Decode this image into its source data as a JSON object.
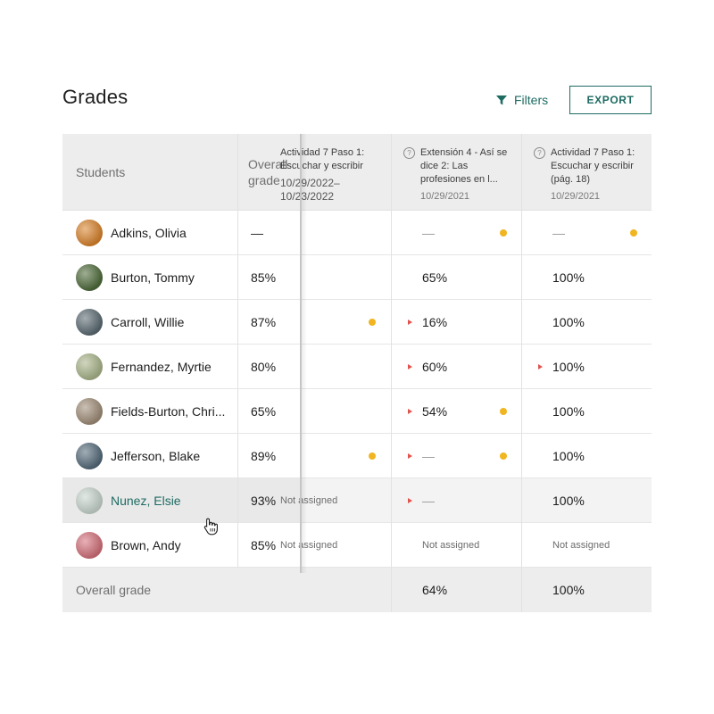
{
  "page": {
    "title": "Grades"
  },
  "toolbar": {
    "filters_label": "Filters",
    "export_label": "EXPORT"
  },
  "table": {
    "headers": {
      "students": "Students",
      "overall": "Overall grade"
    },
    "assignments": [
      {
        "title": "Actividad 7 Paso 1: Escuchar y escribir",
        "date": "10/29/2022–10/23/2022",
        "truncated_left": true
      },
      {
        "title": "Extensión 4 - Así se dice 2: Las profesiones en l...",
        "date": "10/29/2021"
      },
      {
        "title": "Actividad 7 Paso 1: Escuchar y escribir (pág. 18)",
        "date": "10/29/2021"
      }
    ],
    "rows": [
      {
        "name": "Adkins, Olivia",
        "overall": "—",
        "avatar_color": "#d9832b",
        "cells": [
          {
            "value": "",
            "dot": false,
            "flag": false
          },
          {
            "value": "—",
            "dot": true,
            "flag": false,
            "dash": true
          },
          {
            "value": "—",
            "dot": true,
            "flag": false,
            "dash": true
          }
        ]
      },
      {
        "name": "Burton, Tommy",
        "overall": "85%",
        "avatar_color": "#4e6b3a",
        "cells": [
          {
            "value": "",
            "dot": false,
            "flag": false
          },
          {
            "value": "65%",
            "dot": false,
            "flag": false
          },
          {
            "value": "100%",
            "dot": false,
            "flag": false
          }
        ]
      },
      {
        "name": "Carroll, Willie",
        "overall": "87%",
        "avatar_color": "#5a6a72",
        "cells": [
          {
            "value": "",
            "dot": true,
            "flag": false
          },
          {
            "value": "16%",
            "dot": false,
            "flag": true
          },
          {
            "value": "100%",
            "dot": false,
            "flag": false
          }
        ]
      },
      {
        "name": "Fernandez, Myrtie",
        "overall": "80%",
        "avatar_color": "#a9b58a",
        "cells": [
          {
            "value": "",
            "dot": false,
            "flag": false
          },
          {
            "value": "60%",
            "dot": false,
            "flag": true
          },
          {
            "value": "100%",
            "dot": false,
            "flag": true
          }
        ]
      },
      {
        "name": "Fields-Burton, Chri...",
        "overall": "65%",
        "avatar_color": "#a08d78",
        "cells": [
          {
            "value": "",
            "dot": false,
            "flag": false
          },
          {
            "value": "54%",
            "dot": true,
            "flag": true
          },
          {
            "value": "100%",
            "dot": false,
            "flag": false
          }
        ]
      },
      {
        "name": "Jefferson, Blake",
        "overall": "89%",
        "avatar_color": "#546a7a",
        "cells": [
          {
            "value": "",
            "dot": true,
            "flag": false
          },
          {
            "value": "—",
            "dot": true,
            "flag": true,
            "dash": true
          },
          {
            "value": "100%",
            "dot": false,
            "flag": false
          }
        ]
      },
      {
        "name": "Nunez, Elsie",
        "overall": "93%",
        "avatar_color": "#c9d6cf",
        "highlighted": true,
        "cells": [
          {
            "value": "Not assigned",
            "na": true
          },
          {
            "value": "—",
            "dot": false,
            "flag": true,
            "dash": true
          },
          {
            "value": "100%",
            "dot": false,
            "flag": false
          }
        ]
      },
      {
        "name": "Brown, Andy",
        "overall": "85%",
        "avatar_color": "#d4707a",
        "cells": [
          {
            "value": "Not assigned",
            "na": true
          },
          {
            "value": "Not assigned",
            "na": true
          },
          {
            "value": "Not assigned",
            "na": true
          }
        ]
      }
    ],
    "footer": {
      "label": "Overall grade",
      "values": [
        "",
        "64%",
        "100%"
      ]
    }
  },
  "colors": {
    "accent": "#1e6b62",
    "dot": "#f0b520",
    "flag": "#e2534e",
    "header_bg": "#ededed",
    "row_highlight": "#f3f3f3"
  },
  "icons": {
    "filter": "filter-funnel-icon",
    "question": "question-circle-icon",
    "cursor": "hand-pointer-icon"
  }
}
